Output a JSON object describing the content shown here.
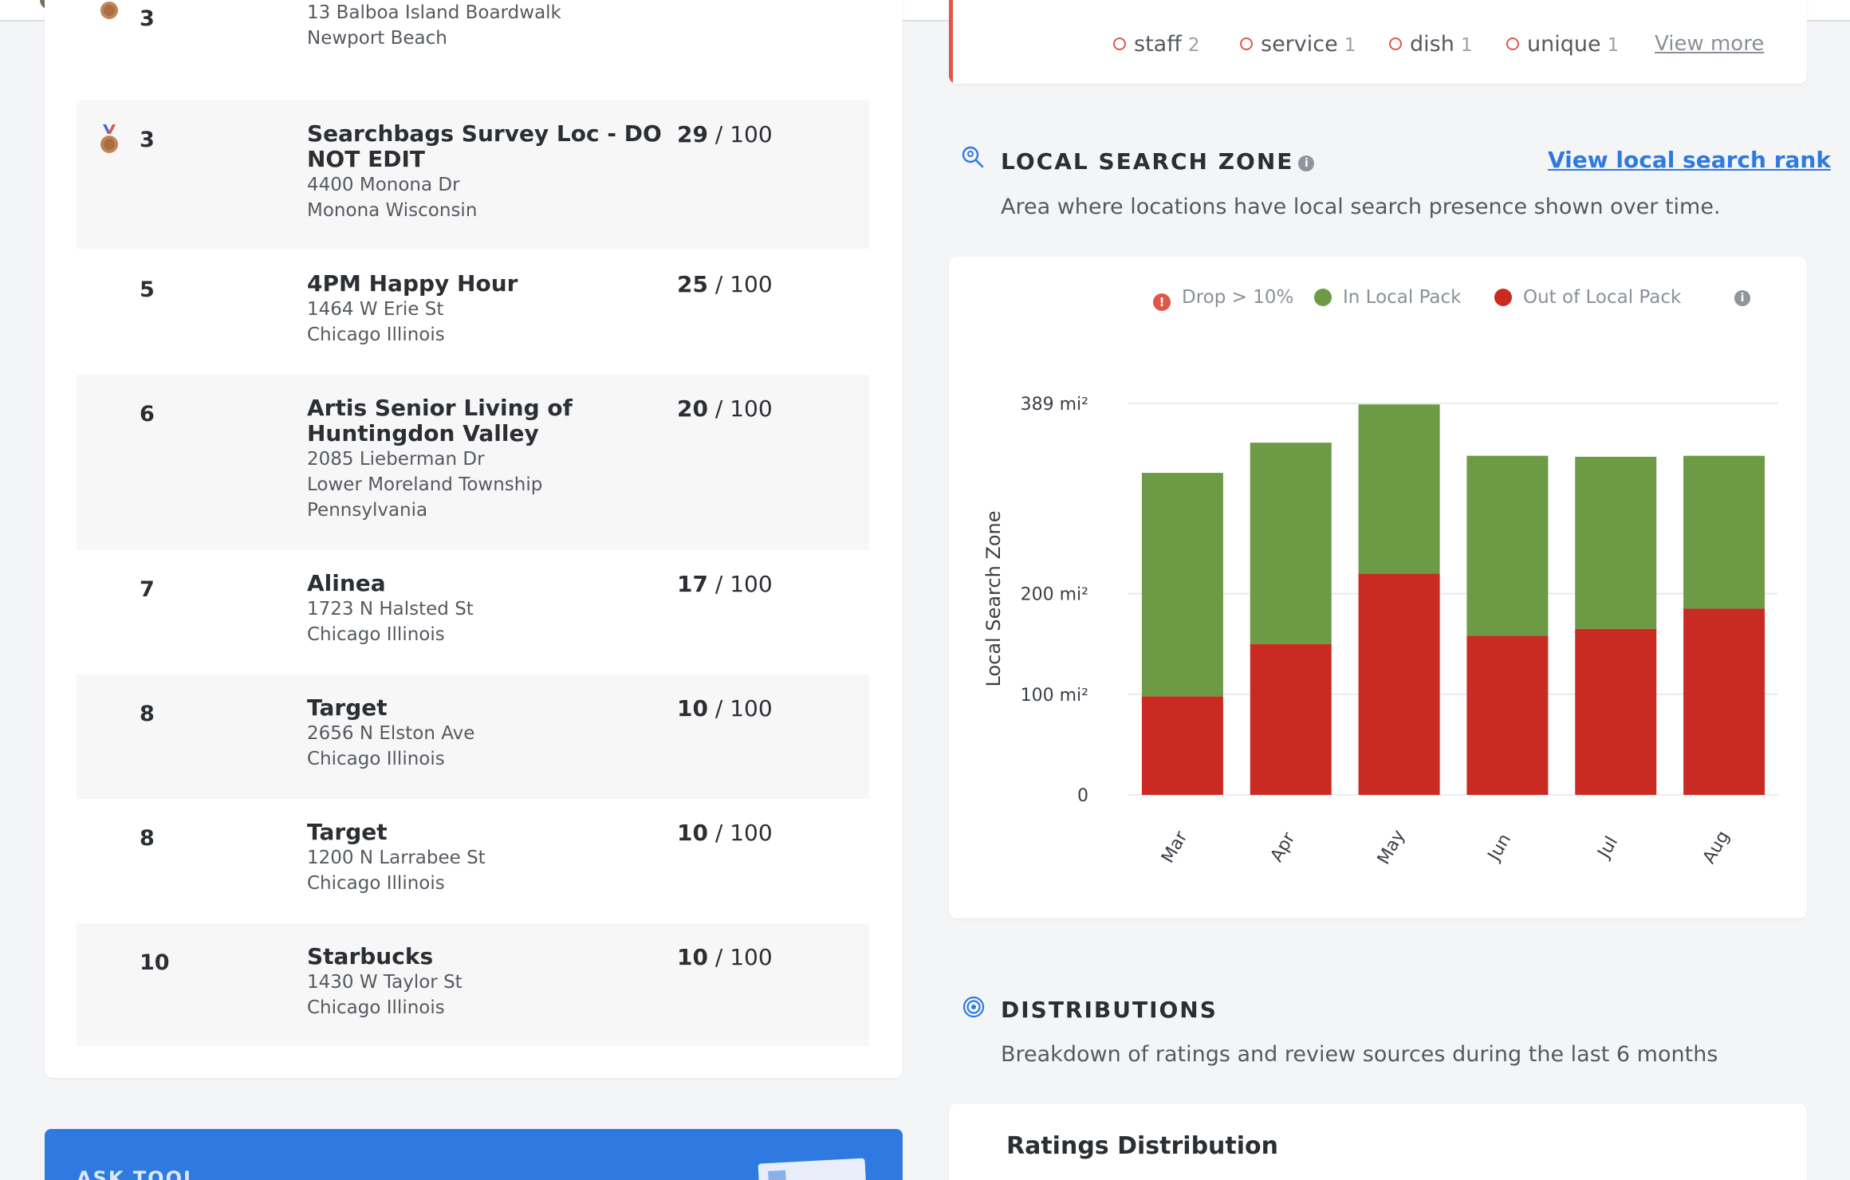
{
  "leaderboard": {
    "rows": [
      {
        "rank": "3",
        "name": "",
        "address_line1": "13 Balboa Island Boardwalk",
        "address_line2": "Newport Beach",
        "address_line3": "",
        "score": "",
        "max": "",
        "medal": true,
        "alt": false
      },
      {
        "rank": "3",
        "name": "Searchbags Survey Loc - DO NOT EDIT",
        "address_line1": "4400 Monona Dr",
        "address_line2": "Monona Wisconsin",
        "address_line3": "",
        "score": "29",
        "max": "/ 100",
        "medal": true,
        "alt": true
      },
      {
        "rank": "5",
        "name": "4PM Happy Hour",
        "address_line1": "1464 W Erie St",
        "address_line2": "Chicago Illinois",
        "address_line3": "",
        "score": "25",
        "max": "/ 100",
        "medal": false,
        "alt": false
      },
      {
        "rank": "6",
        "name": "Artis Senior Living of Huntingdon Valley",
        "address_line1": "2085 Lieberman Dr",
        "address_line2": "Lower Moreland Township",
        "address_line3": "Pennsylvania",
        "score": "20",
        "max": "/ 100",
        "medal": false,
        "alt": true
      },
      {
        "rank": "7",
        "name": "Alinea",
        "address_line1": "1723 N Halsted St",
        "address_line2": "Chicago Illinois",
        "address_line3": "",
        "score": "17",
        "max": "/ 100",
        "medal": false,
        "alt": false
      },
      {
        "rank": "8",
        "name": "Target",
        "address_line1": "2656 N Elston Ave",
        "address_line2": "Chicago Illinois",
        "address_line3": "",
        "score": "10",
        "max": "/ 100",
        "medal": false,
        "alt": true
      },
      {
        "rank": "8",
        "name": "Target",
        "address_line1": "1200 N Larrabee St",
        "address_line2": "Chicago Illinois",
        "address_line3": "",
        "score": "10",
        "max": "/ 100",
        "medal": false,
        "alt": false
      },
      {
        "rank": "10",
        "name": "Starbucks",
        "address_line1": "1430 W Taylor St",
        "address_line2": "Chicago Illinois",
        "address_line3": "",
        "score": "10",
        "max": "/ 100",
        "medal": false,
        "alt": true
      }
    ]
  },
  "ask_card": {
    "title": "ASK TOOL"
  },
  "keywords": {
    "items": [
      {
        "label": "staff",
        "count": "2"
      },
      {
        "label": "service",
        "count": "1"
      },
      {
        "label": "dish",
        "count": "1"
      },
      {
        "label": "unique",
        "count": "1"
      }
    ],
    "view_more": "View more"
  },
  "local_search_zone": {
    "title": "LOCAL SEARCH ZONE",
    "subtitle": "Area where locations have local search presence shown over time.",
    "link": "View local search rank",
    "legend": [
      {
        "label": "Drop > 10%",
        "color": "#e0574a"
      },
      {
        "label": "In Local Pack",
        "color": "#6d9a45"
      },
      {
        "label": "Out of Local Pack",
        "color": "#c92b22"
      }
    ]
  },
  "distributions": {
    "title": "DISTRIBUTIONS",
    "subtitle": "Breakdown of ratings and review sources during the last 6 months",
    "card_title": "Ratings Distribution"
  },
  "chart_data": {
    "type": "bar",
    "stacked": true,
    "ylabel": "Local Search Zone",
    "categories": [
      "Mar",
      "Apr",
      "May",
      "Jun",
      "Jul",
      "Aug"
    ],
    "y_ticks": [
      {
        "value": 0,
        "label": "0"
      },
      {
        "value": 100,
        "label": "100 mi²"
      },
      {
        "value": 200,
        "label": "200 mi²"
      },
      {
        "value": 389,
        "label": "389 mi²"
      }
    ],
    "ylim": [
      0,
      389
    ],
    "series": [
      {
        "name": "Out of Local Pack",
        "color": "#c92b22",
        "values": [
          98,
          150,
          220,
          158,
          165,
          185
        ]
      },
      {
        "name": "In Local Pack",
        "color": "#6d9a45",
        "values": [
          222,
          200,
          168,
          179,
          171,
          152
        ]
      }
    ],
    "grid": true
  }
}
